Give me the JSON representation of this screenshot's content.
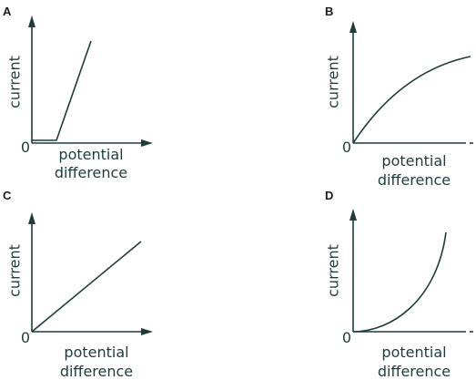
{
  "panels": [
    {
      "label": "A",
      "y_label": "current",
      "x_label_line1": "potential",
      "x_label_line2": "difference",
      "origin": "0"
    },
    {
      "label": "B",
      "y_label": "current",
      "x_label_line1": "potential",
      "x_label_line2": "difference",
      "origin": "0"
    },
    {
      "label": "C",
      "y_label": "current",
      "x_label_line1": "potential",
      "x_label_line2": "difference",
      "origin": "0"
    },
    {
      "label": "D",
      "y_label": "current",
      "x_label_line1": "potential",
      "x_label_line2": "difference",
      "origin": "0"
    }
  ]
}
